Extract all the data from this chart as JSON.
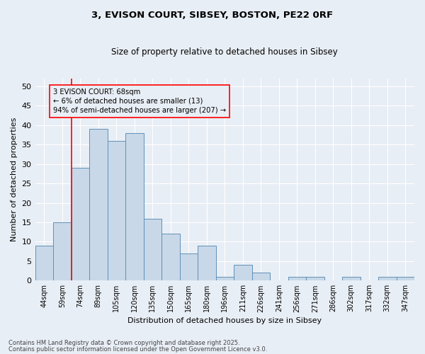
{
  "title": "3, EVISON COURT, SIBSEY, BOSTON, PE22 0RF",
  "subtitle": "Size of property relative to detached houses in Sibsey",
  "xlabel": "Distribution of detached houses by size in Sibsey",
  "ylabel": "Number of detached properties",
  "bar_color": "#c8d8e8",
  "bar_edge_color": "#6090b8",
  "background_color": "#e8eef5",
  "grid_color": "#ffffff",
  "categories": [
    "44sqm",
    "59sqm",
    "74sqm",
    "89sqm",
    "105sqm",
    "120sqm",
    "135sqm",
    "150sqm",
    "165sqm",
    "180sqm",
    "196sqm",
    "211sqm",
    "226sqm",
    "241sqm",
    "256sqm",
    "271sqm",
    "286sqm",
    "302sqm",
    "317sqm",
    "332sqm",
    "347sqm"
  ],
  "values": [
    9,
    15,
    29,
    39,
    36,
    38,
    16,
    12,
    7,
    9,
    1,
    4,
    2,
    0,
    1,
    1,
    0,
    1,
    0,
    1,
    1
  ],
  "annotation_title": "3 EVISON COURT: 68sqm",
  "annotation_line1": "← 6% of detached houses are smaller (13)",
  "annotation_line2": "94% of semi-detached houses are larger (207) →",
  "vline_x": 1.5,
  "ylim": [
    0,
    52
  ],
  "yticks": [
    0,
    5,
    10,
    15,
    20,
    25,
    30,
    35,
    40,
    45,
    50
  ],
  "footnote1": "Contains HM Land Registry data © Crown copyright and database right 2025.",
  "footnote2": "Contains public sector information licensed under the Open Government Licence v3.0."
}
